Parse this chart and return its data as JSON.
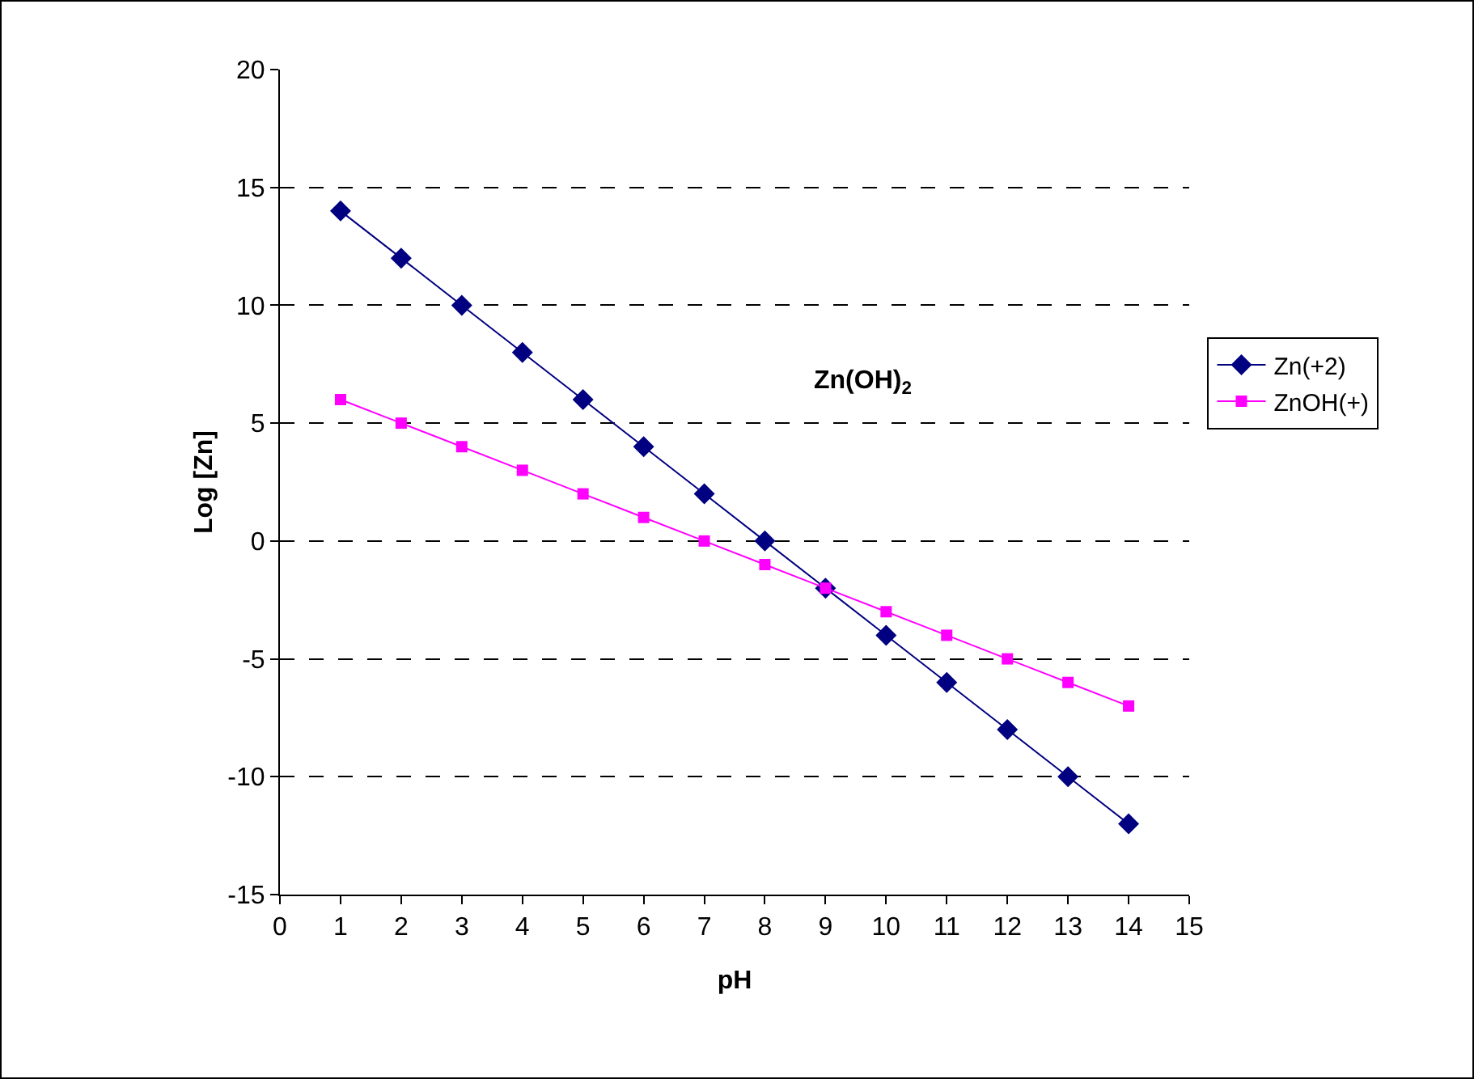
{
  "chart_data": {
    "type": "line",
    "xlabel": "pH",
    "ylabel": "Log [Zn]",
    "x": [
      1,
      2,
      3,
      4,
      5,
      6,
      7,
      8,
      9,
      10,
      11,
      12,
      13,
      14
    ],
    "series": [
      {
        "name": "Zn(+2)",
        "color": "#000080",
        "marker": "diamond",
        "values": [
          14,
          12,
          10,
          8,
          6,
          4,
          2,
          0,
          -2,
          -4,
          -6,
          -8,
          -10,
          -12
        ]
      },
      {
        "name": "ZnOH(+)",
        "color": "#ff00ff",
        "marker": "square",
        "values": [
          6,
          5,
          4,
          3,
          2,
          1,
          0,
          -1,
          -2,
          -3,
          -4,
          -5,
          -6,
          -7
        ]
      }
    ],
    "xlim": [
      0,
      15
    ],
    "xticks": [
      0,
      1,
      2,
      3,
      4,
      5,
      6,
      7,
      8,
      9,
      10,
      11,
      12,
      13,
      14,
      15
    ],
    "ylim": [
      -15,
      20
    ],
    "yticks": [
      -15,
      -10,
      -5,
      0,
      5,
      10,
      15,
      20
    ],
    "grid": "y",
    "line_style": "solid",
    "legend": "right",
    "annotations": [
      "Zn(OH)$_{2}$"
    ]
  }
}
